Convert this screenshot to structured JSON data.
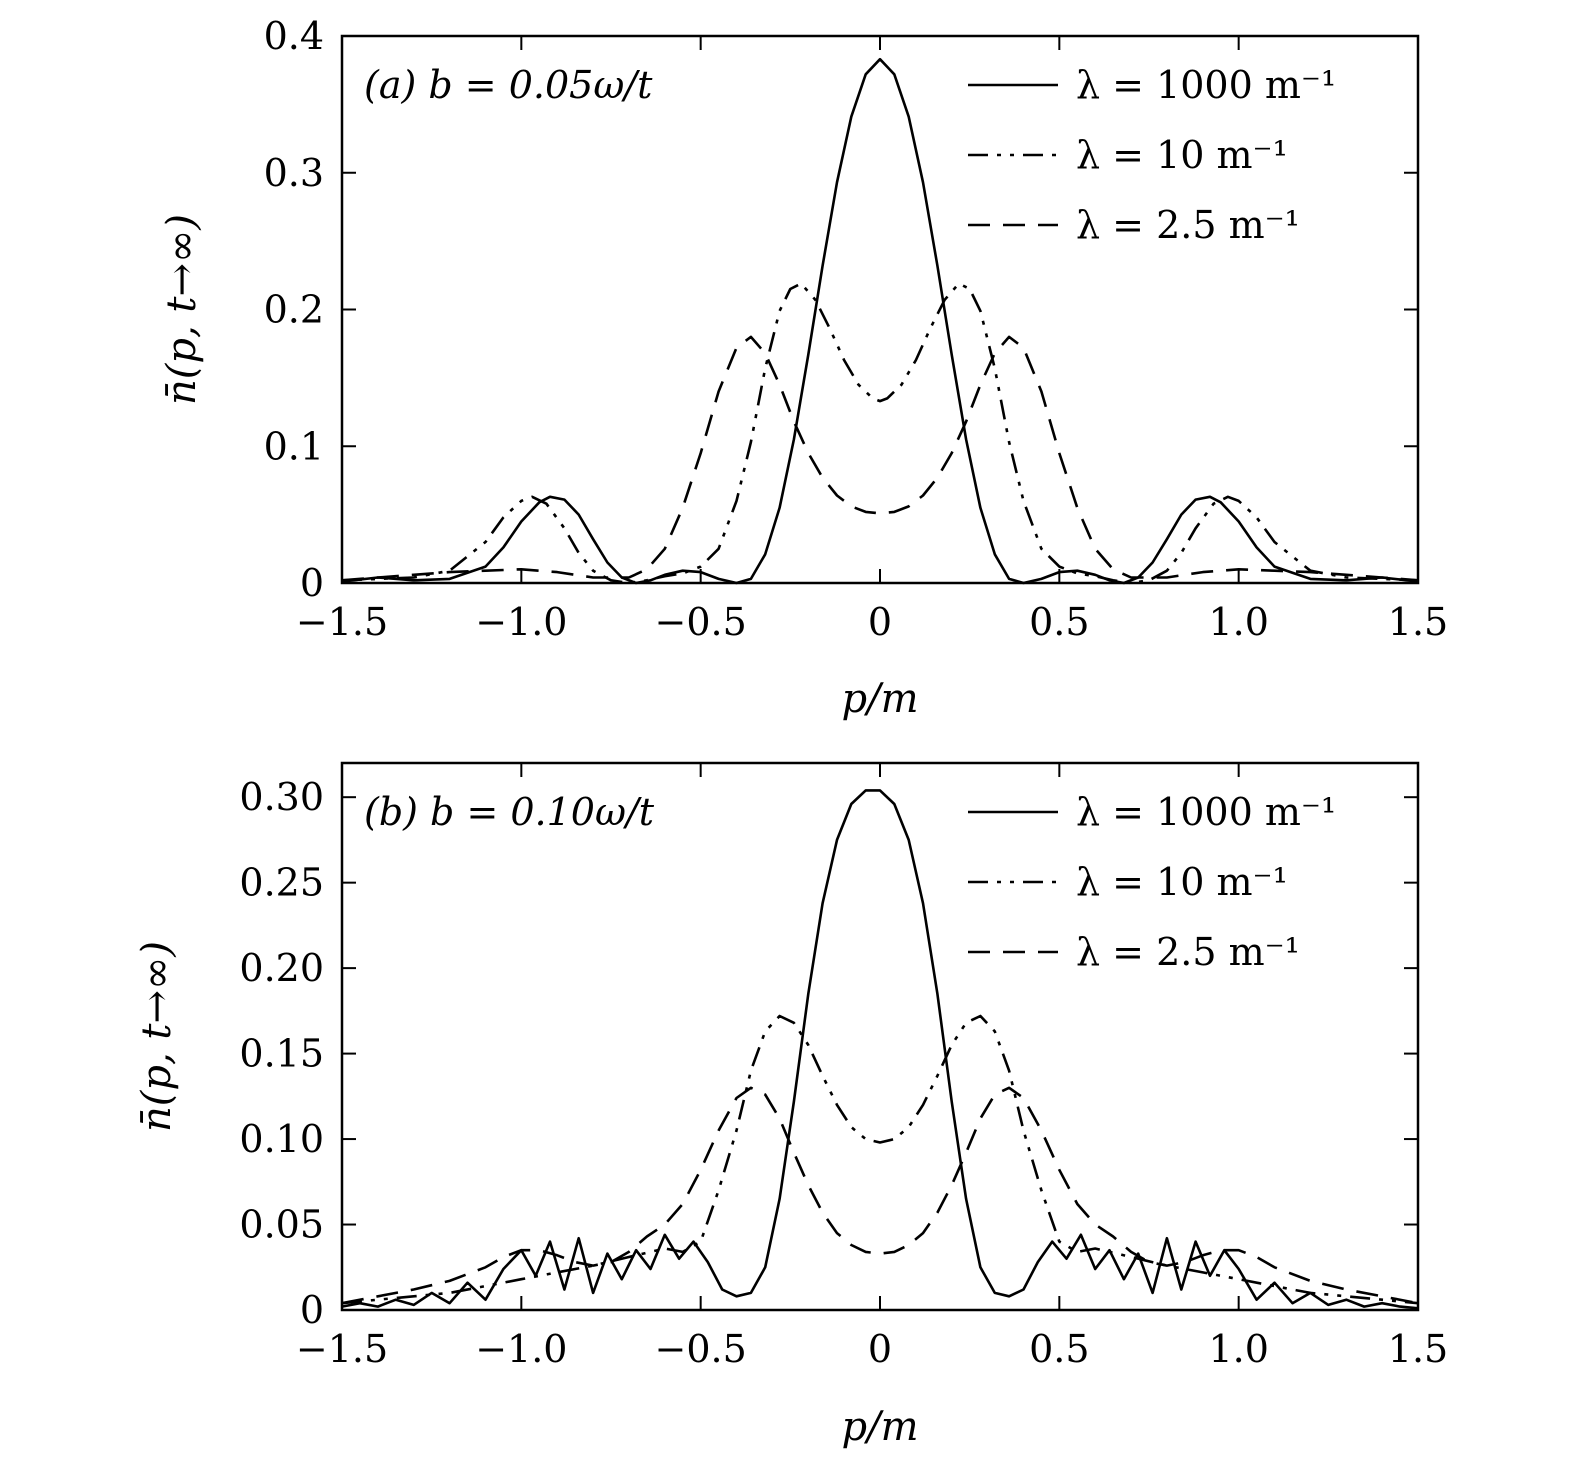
{
  "chart_data": [
    {
      "type": "line",
      "annotation": "(a)  b = 0.05ω/t",
      "xlabel": "p/m",
      "ylabel": "n̄(p, t→∞)",
      "xlim": [
        -1.5,
        1.5
      ],
      "ylim": [
        0,
        0.4
      ],
      "xticks": [
        -1.5,
        -1.0,
        -0.5,
        0,
        0.5,
        1.0,
        1.5
      ],
      "xtick_labels": [
        "−1.5",
        "−1.0",
        "−0.5",
        "0",
        "0.5",
        "1.0",
        "1.5"
      ],
      "yticks": [
        0,
        0.1,
        0.2,
        0.3,
        0.4
      ],
      "ytick_labels": [
        "0",
        "0.1",
        "0.2",
        "0.3",
        "0.4"
      ],
      "grid": false,
      "legend_position": "top-right",
      "series": [
        {
          "name": "λ = 1000 m⁻¹",
          "style": "solid",
          "x": [
            -1.5,
            -1.4,
            -1.3,
            -1.2,
            -1.1,
            -1.05,
            -1.0,
            -0.95,
            -0.92,
            -0.88,
            -0.84,
            -0.8,
            -0.76,
            -0.72,
            -0.68,
            -0.64,
            -0.6,
            -0.55,
            -0.5,
            -0.45,
            -0.4,
            -0.36,
            -0.32,
            -0.28,
            -0.24,
            -0.2,
            -0.16,
            -0.12,
            -0.08,
            -0.04,
            0,
            0.04,
            0.08,
            0.12,
            0.16,
            0.2,
            0.24,
            0.28,
            0.32,
            0.36,
            0.4,
            0.45,
            0.5,
            0.55,
            0.6,
            0.64,
            0.68,
            0.72,
            0.76,
            0.8,
            0.84,
            0.88,
            0.92,
            0.95,
            1.0,
            1.05,
            1.1,
            1.2,
            1.3,
            1.4,
            1.5
          ],
          "y": [
            0.001,
            0.004,
            0.002,
            0.003,
            0.012,
            0.026,
            0.045,
            0.059,
            0.063,
            0.061,
            0.05,
            0.032,
            0.015,
            0.004,
            0.0,
            0.002,
            0.006,
            0.009,
            0.008,
            0.003,
            0.0,
            0.003,
            0.021,
            0.055,
            0.105,
            0.167,
            0.232,
            0.293,
            0.341,
            0.372,
            0.383,
            0.372,
            0.341,
            0.293,
            0.232,
            0.167,
            0.105,
            0.055,
            0.021,
            0.003,
            0.0,
            0.003,
            0.008,
            0.009,
            0.006,
            0.002,
            0.0,
            0.004,
            0.015,
            0.032,
            0.05,
            0.061,
            0.063,
            0.059,
            0.045,
            0.026,
            0.012,
            0.003,
            0.002,
            0.004,
            0.001
          ]
        },
        {
          "name": "λ = 10 m⁻¹",
          "style": "dashdot",
          "x": [
            -1.5,
            -1.4,
            -1.3,
            -1.2,
            -1.1,
            -1.05,
            -1.0,
            -0.97,
            -0.93,
            -0.88,
            -0.84,
            -0.8,
            -0.75,
            -0.7,
            -0.65,
            -0.6,
            -0.55,
            -0.5,
            -0.45,
            -0.4,
            -0.36,
            -0.32,
            -0.28,
            -0.25,
            -0.22,
            -0.18,
            -0.14,
            -0.1,
            -0.06,
            -0.02,
            0,
            0.02,
            0.06,
            0.1,
            0.14,
            0.18,
            0.22,
            0.25,
            0.28,
            0.32,
            0.36,
            0.4,
            0.45,
            0.5,
            0.55,
            0.6,
            0.65,
            0.7,
            0.75,
            0.8,
            0.84,
            0.88,
            0.93,
            0.97,
            1.0,
            1.05,
            1.1,
            1.2,
            1.3,
            1.4,
            1.5
          ],
          "y": [
            0.002,
            0.003,
            0.004,
            0.009,
            0.03,
            0.048,
            0.06,
            0.063,
            0.058,
            0.04,
            0.022,
            0.009,
            0.002,
            0.0,
            0.002,
            0.005,
            0.007,
            0.012,
            0.025,
            0.06,
            0.103,
            0.157,
            0.199,
            0.215,
            0.219,
            0.207,
            0.186,
            0.163,
            0.145,
            0.135,
            0.133,
            0.135,
            0.145,
            0.163,
            0.186,
            0.207,
            0.219,
            0.215,
            0.199,
            0.157,
            0.103,
            0.06,
            0.025,
            0.012,
            0.007,
            0.005,
            0.002,
            0.0,
            0.002,
            0.009,
            0.022,
            0.04,
            0.058,
            0.063,
            0.06,
            0.048,
            0.03,
            0.009,
            0.004,
            0.003,
            0.002
          ]
        },
        {
          "name": "λ = 2.5 m⁻¹",
          "style": "dashed",
          "x": [
            -1.5,
            -1.4,
            -1.3,
            -1.2,
            -1.1,
            -1.0,
            -0.9,
            -0.8,
            -0.7,
            -0.65,
            -0.6,
            -0.55,
            -0.5,
            -0.45,
            -0.4,
            -0.36,
            -0.32,
            -0.28,
            -0.24,
            -0.2,
            -0.16,
            -0.12,
            -0.08,
            -0.04,
            0,
            0.04,
            0.08,
            0.12,
            0.16,
            0.2,
            0.24,
            0.28,
            0.32,
            0.36,
            0.4,
            0.45,
            0.5,
            0.55,
            0.6,
            0.65,
            0.7,
            0.8,
            0.9,
            1.0,
            1.1,
            1.2,
            1.3,
            1.4,
            1.5
          ],
          "y": [
            0.002,
            0.004,
            0.006,
            0.008,
            0.009,
            0.01,
            0.008,
            0.004,
            0.004,
            0.01,
            0.025,
            0.055,
            0.095,
            0.14,
            0.172,
            0.18,
            0.168,
            0.145,
            0.118,
            0.095,
            0.077,
            0.064,
            0.056,
            0.052,
            0.051,
            0.052,
            0.056,
            0.064,
            0.077,
            0.095,
            0.118,
            0.145,
            0.168,
            0.18,
            0.172,
            0.14,
            0.095,
            0.055,
            0.025,
            0.01,
            0.004,
            0.004,
            0.008,
            0.01,
            0.009,
            0.008,
            0.006,
            0.004,
            0.002
          ]
        }
      ]
    },
    {
      "type": "line",
      "annotation": "(b)  b = 0.10ω/t",
      "xlabel": "p/m",
      "ylabel": "n̄(p, t→∞)",
      "xlim": [
        -1.5,
        1.5
      ],
      "ylim": [
        0,
        0.32
      ],
      "xticks": [
        -1.5,
        -1.0,
        -0.5,
        0,
        0.5,
        1.0,
        1.5
      ],
      "xtick_labels": [
        "−1.5",
        "−1.0",
        "−0.5",
        "0",
        "0.5",
        "1.0",
        "1.5"
      ],
      "yticks": [
        0,
        0.05,
        0.1,
        0.15,
        0.2,
        0.25,
        0.3
      ],
      "ytick_labels": [
        "0",
        "0.05",
        "0.10",
        "0.15",
        "0.20",
        "0.25",
        "0.30"
      ],
      "grid": false,
      "legend_position": "top-right",
      "series": [
        {
          "name": "λ = 1000 m⁻¹",
          "style": "solid",
          "x": [
            -1.5,
            -1.45,
            -1.4,
            -1.35,
            -1.3,
            -1.25,
            -1.2,
            -1.15,
            -1.1,
            -1.05,
            -1.0,
            -0.96,
            -0.92,
            -0.88,
            -0.84,
            -0.8,
            -0.76,
            -0.72,
            -0.68,
            -0.64,
            -0.6,
            -0.56,
            -0.52,
            -0.48,
            -0.44,
            -0.4,
            -0.36,
            -0.32,
            -0.28,
            -0.24,
            -0.2,
            -0.16,
            -0.12,
            -0.08,
            -0.04,
            0,
            0.04,
            0.08,
            0.12,
            0.16,
            0.2,
            0.24,
            0.28,
            0.32,
            0.36,
            0.4,
            0.44,
            0.48,
            0.52,
            0.56,
            0.6,
            0.64,
            0.68,
            0.72,
            0.76,
            0.8,
            0.84,
            0.88,
            0.92,
            0.96,
            1.0,
            1.05,
            1.1,
            1.15,
            1.2,
            1.25,
            1.3,
            1.35,
            1.4,
            1.45,
            1.5
          ],
          "y": [
            0.002,
            0.004,
            0.002,
            0.006,
            0.003,
            0.01,
            0.004,
            0.016,
            0.006,
            0.024,
            0.035,
            0.02,
            0.04,
            0.012,
            0.042,
            0.01,
            0.033,
            0.018,
            0.035,
            0.024,
            0.044,
            0.03,
            0.04,
            0.028,
            0.012,
            0.008,
            0.01,
            0.025,
            0.065,
            0.122,
            0.185,
            0.238,
            0.275,
            0.296,
            0.304,
            0.304,
            0.296,
            0.275,
            0.238,
            0.185,
            0.122,
            0.065,
            0.025,
            0.01,
            0.008,
            0.012,
            0.028,
            0.04,
            0.03,
            0.044,
            0.024,
            0.035,
            0.018,
            0.033,
            0.01,
            0.042,
            0.012,
            0.04,
            0.02,
            0.035,
            0.024,
            0.006,
            0.016,
            0.004,
            0.01,
            0.003,
            0.006,
            0.002,
            0.004,
            0.002,
            0.001
          ]
        },
        {
          "name": "λ = 10 m⁻¹",
          "style": "dashdot",
          "x": [
            -1.5,
            -1.4,
            -1.3,
            -1.2,
            -1.1,
            -1.0,
            -0.9,
            -0.8,
            -0.7,
            -0.6,
            -0.55,
            -0.5,
            -0.45,
            -0.4,
            -0.36,
            -0.32,
            -0.28,
            -0.24,
            -0.2,
            -0.16,
            -0.12,
            -0.08,
            -0.04,
            0,
            0.04,
            0.08,
            0.12,
            0.16,
            0.2,
            0.24,
            0.28,
            0.32,
            0.36,
            0.4,
            0.45,
            0.5,
            0.55,
            0.6,
            0.7,
            0.8,
            0.9,
            1.0,
            1.1,
            1.2,
            1.3,
            1.4,
            1.5
          ],
          "y": [
            0.004,
            0.006,
            0.008,
            0.01,
            0.014,
            0.018,
            0.022,
            0.026,
            0.031,
            0.036,
            0.034,
            0.04,
            0.07,
            0.105,
            0.14,
            0.163,
            0.172,
            0.168,
            0.155,
            0.137,
            0.12,
            0.107,
            0.1,
            0.098,
            0.1,
            0.107,
            0.12,
            0.137,
            0.155,
            0.168,
            0.172,
            0.163,
            0.14,
            0.105,
            0.07,
            0.04,
            0.034,
            0.036,
            0.031,
            0.026,
            0.022,
            0.018,
            0.014,
            0.01,
            0.008,
            0.006,
            0.004
          ]
        },
        {
          "name": "λ = 2.5 m⁻¹",
          "style": "dashed",
          "x": [
            -1.5,
            -1.4,
            -1.3,
            -1.2,
            -1.1,
            -1.05,
            -1.0,
            -0.95,
            -0.9,
            -0.85,
            -0.8,
            -0.75,
            -0.7,
            -0.65,
            -0.6,
            -0.55,
            -0.5,
            -0.45,
            -0.4,
            -0.36,
            -0.32,
            -0.28,
            -0.24,
            -0.2,
            -0.16,
            -0.12,
            -0.08,
            -0.04,
            0,
            0.04,
            0.08,
            0.12,
            0.16,
            0.2,
            0.24,
            0.28,
            0.32,
            0.36,
            0.4,
            0.45,
            0.5,
            0.55,
            0.6,
            0.65,
            0.7,
            0.75,
            0.8,
            0.85,
            0.9,
            0.95,
            1.0,
            1.05,
            1.1,
            1.2,
            1.3,
            1.4,
            1.5
          ],
          "y": [
            0.004,
            0.008,
            0.012,
            0.017,
            0.025,
            0.031,
            0.035,
            0.035,
            0.032,
            0.028,
            0.026,
            0.028,
            0.034,
            0.043,
            0.05,
            0.062,
            0.082,
            0.105,
            0.124,
            0.13,
            0.126,
            0.112,
            0.092,
            0.073,
            0.057,
            0.045,
            0.038,
            0.034,
            0.033,
            0.034,
            0.038,
            0.045,
            0.057,
            0.073,
            0.092,
            0.112,
            0.126,
            0.13,
            0.124,
            0.105,
            0.082,
            0.062,
            0.05,
            0.043,
            0.034,
            0.028,
            0.026,
            0.028,
            0.032,
            0.035,
            0.035,
            0.031,
            0.025,
            0.017,
            0.012,
            0.008,
            0.004
          ]
        }
      ]
    }
  ]
}
